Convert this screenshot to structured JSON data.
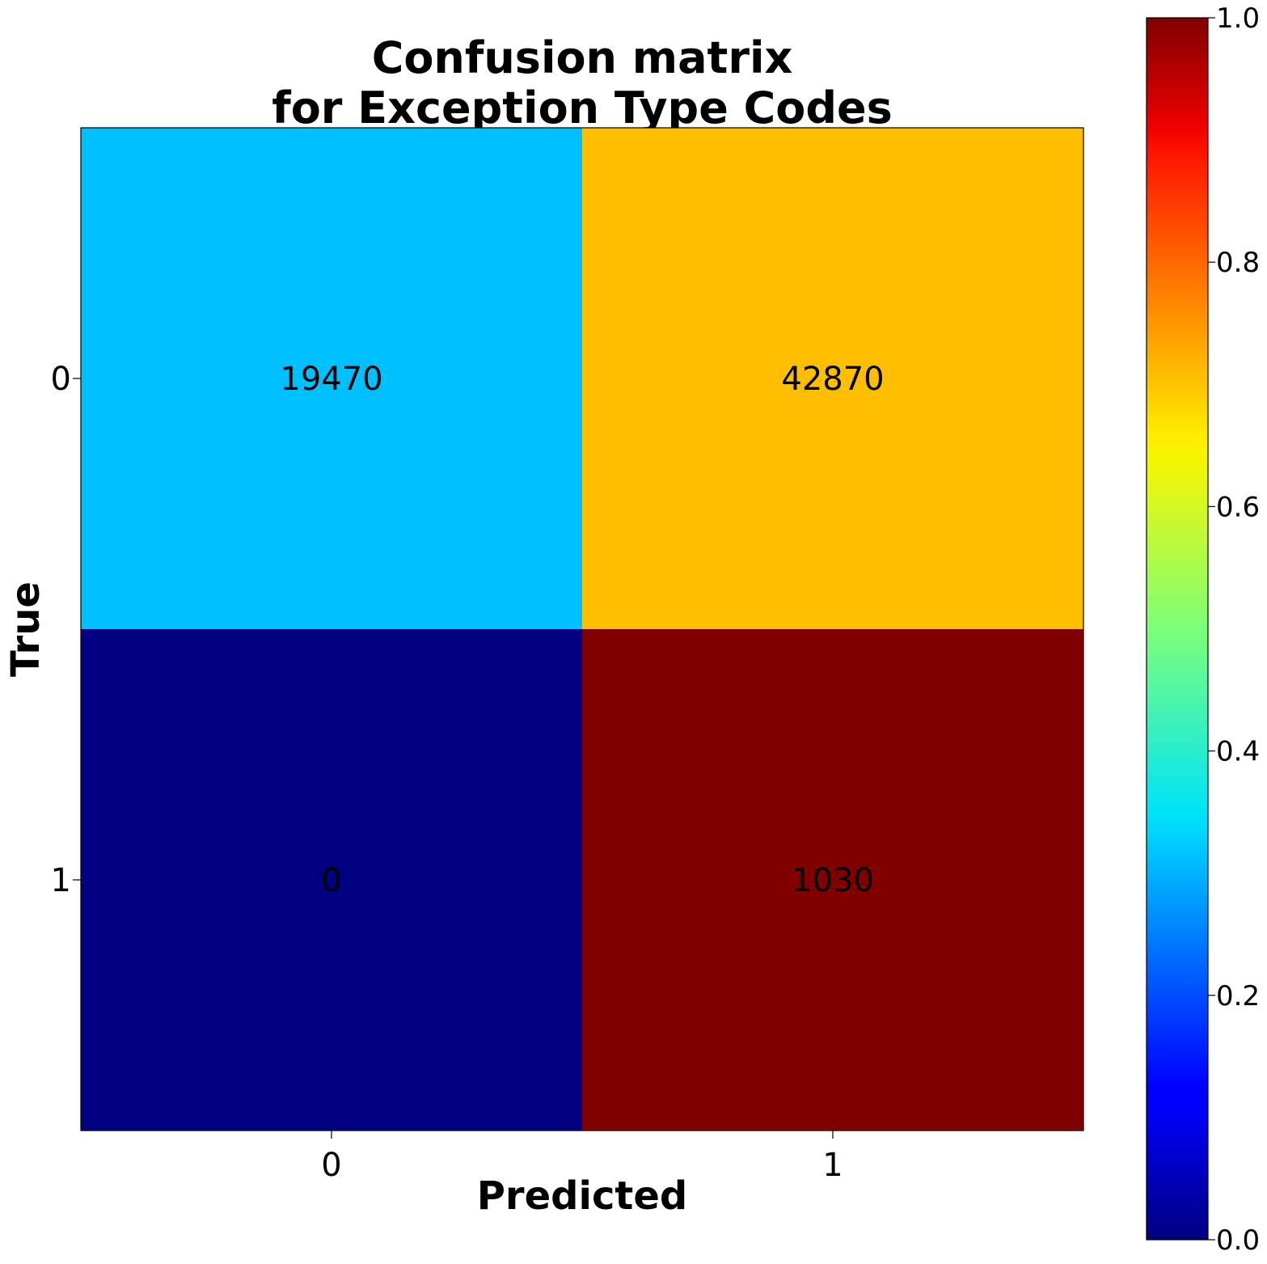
{
  "chart_data": {
    "type": "heatmap",
    "title_lines": [
      "Confusion matrix",
      "for Exception Type Codes"
    ],
    "xlabel": "Predicted",
    "ylabel": "True",
    "x_categories": [
      "0",
      "1"
    ],
    "y_categories": [
      "0",
      "1"
    ],
    "values": [
      [
        19470,
        42870
      ],
      [
        0,
        1030
      ]
    ],
    "cell_labels": [
      [
        "19470",
        "42870"
      ],
      [
        "0",
        "1030"
      ]
    ],
    "normalized": [
      [
        0.3123,
        0.6877
      ],
      [
        0.0,
        1.0
      ]
    ],
    "colormap": "jet",
    "colorbar": {
      "range": [
        0,
        1
      ],
      "ticks": [
        0.0,
        0.2,
        0.4,
        0.6,
        0.8,
        1.0
      ],
      "tick_labels": [
        "0.0",
        "0.2",
        "0.4",
        "0.6",
        "0.8",
        "1.0"
      ]
    }
  }
}
